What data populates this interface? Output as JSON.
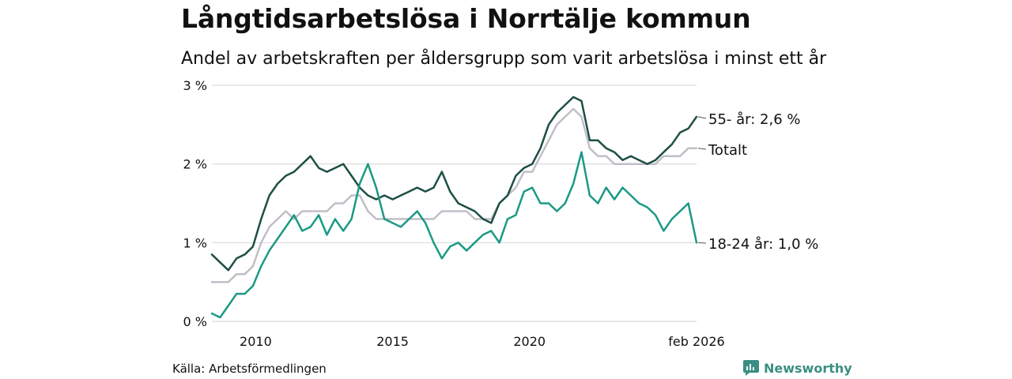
{
  "header": {
    "title": "Långtidsarbetslösa i Norrtälje kommun",
    "subtitle": "Andel av arbetskraften per åldersgrupp som varit arbetslösa i minst ett år"
  },
  "footer": {
    "source": "Källa: Arbetsförmedlingen",
    "brand": "Newsworthy"
  },
  "colors": {
    "older": "#1d4f45",
    "total": "#c0bfc8",
    "young": "#1a9a84",
    "grid": "#d9d9d9",
    "brand": "#3a8f82"
  },
  "chart_data": {
    "type": "line",
    "title": "Långtidsarbetslösa i Norrtälje kommun",
    "xlabel": "",
    "ylabel": "",
    "xlim": [
      2008.4,
      2026.1
    ],
    "ylim": [
      0,
      3
    ],
    "yticks": [
      0,
      1,
      2,
      3
    ],
    "ytick_labels": [
      "0 %",
      "1 %",
      "2 %",
      "3 %"
    ],
    "xticks": [
      2010,
      2015,
      2020,
      2026.1
    ],
    "xtick_labels": [
      "2010",
      "2015",
      "2020",
      "feb 2026"
    ],
    "series": [
      {
        "name": "55- år",
        "label": "55- år: 2,6 %",
        "color": "#1d4f45",
        "x": [
          2008.4,
          2008.7,
          2009.0,
          2009.3,
          2009.6,
          2009.9,
          2010.2,
          2010.5,
          2010.8,
          2011.1,
          2011.4,
          2011.7,
          2012.0,
          2012.3,
          2012.6,
          2012.9,
          2013.2,
          2013.5,
          2013.8,
          2014.1,
          2014.4,
          2014.7,
          2015.0,
          2015.3,
          2015.6,
          2015.9,
          2016.2,
          2016.5,
          2016.8,
          2017.1,
          2017.4,
          2017.7,
          2018.0,
          2018.3,
          2018.6,
          2018.9,
          2019.2,
          2019.5,
          2019.8,
          2020.1,
          2020.4,
          2020.7,
          2021.0,
          2021.3,
          2021.6,
          2021.9,
          2022.2,
          2022.5,
          2022.8,
          2023.1,
          2023.4,
          2023.7,
          2024.0,
          2024.3,
          2024.6,
          2024.9,
          2025.2,
          2025.5,
          2025.8,
          2026.1
        ],
        "y": [
          0.85,
          0.75,
          0.65,
          0.8,
          0.85,
          0.95,
          1.3,
          1.6,
          1.75,
          1.85,
          1.9,
          2.0,
          2.1,
          1.95,
          1.9,
          1.95,
          2.0,
          1.85,
          1.7,
          1.6,
          1.55,
          1.6,
          1.55,
          1.6,
          1.65,
          1.7,
          1.65,
          1.7,
          1.9,
          1.65,
          1.5,
          1.45,
          1.4,
          1.3,
          1.25,
          1.5,
          1.6,
          1.85,
          1.95,
          2.0,
          2.2,
          2.5,
          2.65,
          2.75,
          2.85,
          2.8,
          2.3,
          2.3,
          2.2,
          2.15,
          2.05,
          2.1,
          2.05,
          2.0,
          2.05,
          2.15,
          2.25,
          2.4,
          2.45,
          2.6
        ]
      },
      {
        "name": "Totalt",
        "label": "Totalt",
        "color": "#c0bfc8",
        "x": [
          2008.4,
          2008.7,
          2009.0,
          2009.3,
          2009.6,
          2009.9,
          2010.2,
          2010.5,
          2010.8,
          2011.1,
          2011.4,
          2011.7,
          2012.0,
          2012.3,
          2012.6,
          2012.9,
          2013.2,
          2013.5,
          2013.8,
          2014.1,
          2014.4,
          2014.7,
          2015.0,
          2015.3,
          2015.6,
          2015.9,
          2016.2,
          2016.5,
          2016.8,
          2017.1,
          2017.4,
          2017.7,
          2018.0,
          2018.3,
          2018.6,
          2018.9,
          2019.2,
          2019.5,
          2019.8,
          2020.1,
          2020.4,
          2020.7,
          2021.0,
          2021.3,
          2021.6,
          2021.9,
          2022.2,
          2022.5,
          2022.8,
          2023.1,
          2023.4,
          2023.7,
          2024.0,
          2024.3,
          2024.6,
          2024.9,
          2025.2,
          2025.5,
          2025.8,
          2026.1
        ],
        "y": [
          0.5,
          0.5,
          0.5,
          0.6,
          0.6,
          0.7,
          1.0,
          1.2,
          1.3,
          1.4,
          1.3,
          1.4,
          1.4,
          1.4,
          1.4,
          1.5,
          1.5,
          1.6,
          1.6,
          1.4,
          1.3,
          1.3,
          1.3,
          1.3,
          1.3,
          1.3,
          1.3,
          1.3,
          1.4,
          1.4,
          1.4,
          1.4,
          1.3,
          1.3,
          1.3,
          1.5,
          1.6,
          1.7,
          1.9,
          1.9,
          2.1,
          2.3,
          2.5,
          2.6,
          2.7,
          2.6,
          2.2,
          2.1,
          2.1,
          2.0,
          2.0,
          2.0,
          2.0,
          2.0,
          2.0,
          2.1,
          2.1,
          2.1,
          2.2,
          2.2
        ]
      },
      {
        "name": "18-24 år",
        "label": "18-24 år: 1,0 %",
        "color": "#1a9a84",
        "x": [
          2008.4,
          2008.7,
          2009.0,
          2009.3,
          2009.6,
          2009.9,
          2010.2,
          2010.5,
          2010.8,
          2011.1,
          2011.4,
          2011.7,
          2012.0,
          2012.3,
          2012.6,
          2012.9,
          2013.2,
          2013.5,
          2013.8,
          2014.1,
          2014.4,
          2014.7,
          2015.0,
          2015.3,
          2015.6,
          2015.9,
          2016.2,
          2016.5,
          2016.8,
          2017.1,
          2017.4,
          2017.7,
          2018.0,
          2018.3,
          2018.6,
          2018.9,
          2019.2,
          2019.5,
          2019.8,
          2020.1,
          2020.4,
          2020.7,
          2021.0,
          2021.3,
          2021.6,
          2021.9,
          2022.2,
          2022.5,
          2022.8,
          2023.1,
          2023.4,
          2023.7,
          2024.0,
          2024.3,
          2024.6,
          2024.9,
          2025.2,
          2025.5,
          2025.8,
          2026.1
        ],
        "y": [
          0.1,
          0.05,
          0.2,
          0.35,
          0.35,
          0.45,
          0.7,
          0.9,
          1.05,
          1.2,
          1.35,
          1.15,
          1.2,
          1.35,
          1.1,
          1.3,
          1.15,
          1.3,
          1.75,
          2.0,
          1.7,
          1.3,
          1.25,
          1.2,
          1.3,
          1.4,
          1.25,
          1.0,
          0.8,
          0.95,
          1.0,
          0.9,
          1.0,
          1.1,
          1.15,
          1.0,
          1.3,
          1.35,
          1.65,
          1.7,
          1.5,
          1.5,
          1.4,
          1.5,
          1.75,
          2.15,
          1.6,
          1.5,
          1.7,
          1.55,
          1.7,
          1.6,
          1.5,
          1.45,
          1.35,
          1.15,
          1.3,
          1.4,
          1.5,
          1.0
        ]
      }
    ]
  }
}
